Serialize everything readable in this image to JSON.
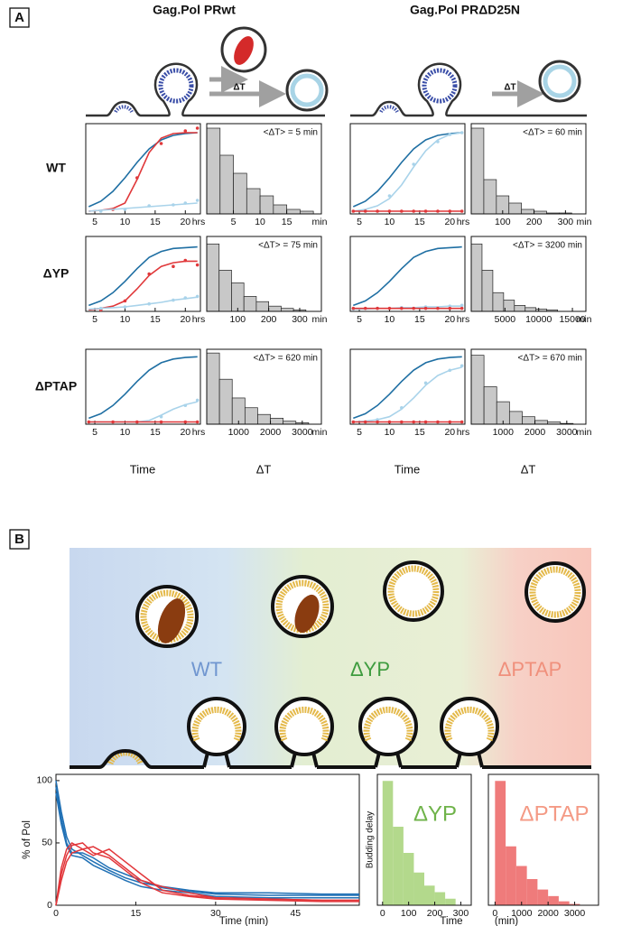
{
  "panel_a": {
    "label": "A",
    "columns": [
      "Gag.Pol PRwt",
      "Gag.Pol PRΔD25N"
    ],
    "rows": [
      "WT",
      "ΔYP",
      "ΔPTAP"
    ],
    "diagram_labels": [
      "ΔT",
      "ΔT"
    ],
    "x_titles": [
      "Time",
      "ΔT",
      "Time",
      "ΔT"
    ]
  },
  "panel_b": {
    "label": "B",
    "region_labels": [
      "WT",
      "ΔYP",
      "ΔPTAP"
    ]
  },
  "chart_data": [
    {
      "type": "line",
      "x": [
        4,
        6,
        8,
        10,
        12,
        14,
        16,
        18,
        20,
        22
      ],
      "xlim": [
        3.5,
        22.5
      ],
      "xticks": [
        5,
        10,
        15,
        20
      ],
      "x_unit": "hrs",
      "ylim": [
        0,
        100
      ],
      "series": [
        {
          "color": "#1f6fa3",
          "values": [
            8,
            14,
            25,
            40,
            57,
            72,
            82,
            87,
            89,
            90
          ]
        },
        {
          "color": "#e0383a",
          "values": [
            3,
            4,
            6,
            12,
            38,
            68,
            84,
            89,
            90,
            90
          ],
          "points": [
            null,
            null,
            5,
            null,
            40,
            null,
            78,
            null,
            92,
            95
          ]
        },
        {
          "color": "#a9d3ea",
          "values": [
            3,
            4,
            5,
            6,
            7,
            8,
            9,
            10,
            11,
            12
          ],
          "points": [
            null,
            3,
            null,
            5,
            null,
            9,
            null,
            10,
            12,
            15
          ]
        }
      ]
    },
    {
      "type": "histogram",
      "bins": [
        0,
        2.5,
        5,
        7.5,
        10,
        12.5,
        15,
        17.5,
        20
      ],
      "counts": [
        95,
        65,
        45,
        28,
        20,
        10,
        5,
        3
      ],
      "xlim": [
        0,
        21.5
      ],
      "xticks": [
        5,
        10,
        15
      ],
      "x_unit": "min",
      "ylim": [
        0,
        100
      ],
      "color": "#c8c8c8",
      "annotation": "<ΔT> = 5 min"
    },
    {
      "type": "line",
      "x": [
        4,
        6,
        8,
        10,
        12,
        14,
        16,
        18,
        20,
        22
      ],
      "xlim": [
        3.5,
        22.5
      ],
      "xticks": [
        5,
        10,
        15,
        20
      ],
      "x_unit": "hrs",
      "ylim": [
        0,
        100
      ],
      "series": [
        {
          "color": "#1f6fa3",
          "values": [
            8,
            14,
            25,
            40,
            57,
            72,
            82,
            87,
            89,
            90
          ]
        },
        {
          "color": "#a9d3ea",
          "values": [
            3,
            5,
            9,
            17,
            32,
            52,
            70,
            82,
            88,
            90
          ],
          "points": [
            null,
            4,
            null,
            20,
            null,
            55,
            null,
            80,
            88,
            90
          ]
        },
        {
          "color": "#e0383a",
          "values": [
            3,
            3,
            3,
            3,
            3,
            3,
            3,
            3,
            3,
            3
          ],
          "points": [
            3,
            3,
            3,
            3,
            3,
            3,
            3,
            3,
            3,
            3
          ]
        }
      ]
    },
    {
      "type": "histogram",
      "bins": [
        0,
        40,
        80,
        120,
        160,
        200,
        240,
        280,
        320
      ],
      "counts": [
        95,
        38,
        20,
        12,
        5,
        3,
        1,
        1
      ],
      "xlim": [
        0,
        365
      ],
      "xticks": [
        100,
        200,
        300
      ],
      "x_unit": "min",
      "ylim": [
        0,
        100
      ],
      "color": "#c8c8c8",
      "annotation": "<ΔT> = 60 min"
    },
    {
      "type": "line",
      "x": [
        4,
        6,
        8,
        10,
        12,
        14,
        16,
        18,
        20,
        22
      ],
      "xlim": [
        3.5,
        22.5
      ],
      "xticks": [
        5,
        10,
        15,
        20
      ],
      "x_unit": "hrs",
      "ylim": [
        0,
        100
      ],
      "series": [
        {
          "color": "#1f6fa3",
          "values": [
            8,
            14,
            25,
            40,
            57,
            72,
            80,
            84,
            85,
            86
          ]
        },
        {
          "color": "#e0383a",
          "values": [
            2,
            4,
            7,
            14,
            30,
            48,
            60,
            65,
            67,
            67
          ],
          "points": [
            null,
            2,
            null,
            14,
            null,
            50,
            null,
            60,
            68,
            62
          ]
        },
        {
          "color": "#a9d3ea",
          "values": [
            3,
            4,
            5,
            6,
            8,
            10,
            12,
            15,
            17,
            19
          ],
          "points": [
            null,
            4,
            null,
            6,
            null,
            10,
            null,
            15,
            18,
            20
          ]
        }
      ]
    },
    {
      "type": "histogram",
      "bins": [
        0,
        40,
        80,
        120,
        160,
        200,
        240,
        280,
        320
      ],
      "counts": [
        90,
        55,
        38,
        20,
        13,
        7,
        4,
        2
      ],
      "xlim": [
        0,
        370
      ],
      "xticks": [
        100,
        200,
        300
      ],
      "x_unit": "min",
      "ylim": [
        0,
        100
      ],
      "color": "#c8c8c8",
      "annotation": "<ΔT> = 75 min"
    },
    {
      "type": "line",
      "x": [
        4,
        6,
        8,
        10,
        12,
        14,
        16,
        18,
        20,
        22
      ],
      "xlim": [
        3.5,
        22.5
      ],
      "xticks": [
        5,
        10,
        15,
        20
      ],
      "x_unit": "hrs",
      "ylim": [
        0,
        100
      ],
      "series": [
        {
          "color": "#1f6fa3",
          "values": [
            8,
            14,
            25,
            40,
            57,
            72,
            80,
            84,
            85,
            86
          ]
        },
        {
          "color": "#a9d3ea",
          "values": [
            3,
            3,
            4,
            4,
            5,
            5,
            6,
            6,
            7,
            7
          ],
          "points": [
            3,
            null,
            4,
            null,
            5,
            null,
            6,
            null,
            7,
            8
          ]
        },
        {
          "color": "#e0383a",
          "values": [
            4,
            4,
            4,
            4,
            4,
            4,
            4,
            4,
            4,
            4
          ],
          "points": [
            4,
            4,
            4,
            4,
            4,
            4,
            4,
            4,
            4,
            4
          ]
        }
      ]
    },
    {
      "type": "histogram",
      "bins": [
        0,
        1600,
        3200,
        4800,
        6400,
        8000,
        9600,
        11200,
        12800
      ],
      "counts": [
        90,
        55,
        25,
        15,
        8,
        5,
        3,
        2
      ],
      "xlim": [
        0,
        17000
      ],
      "xticks": [
        5000,
        10000,
        15000
      ],
      "x_unit": "min",
      "ylim": [
        0,
        100
      ],
      "color": "#c8c8c8",
      "annotation": "<ΔT> = 3200 min"
    },
    {
      "type": "line",
      "x": [
        4,
        6,
        8,
        10,
        12,
        14,
        16,
        18,
        20,
        22
      ],
      "xlim": [
        3.5,
        22.5
      ],
      "xticks": [
        5,
        10,
        15,
        20
      ],
      "x_unit": "hrs",
      "ylim": [
        0,
        100
      ],
      "series": [
        {
          "color": "#1f6fa3",
          "values": [
            8,
            14,
            25,
            40,
            57,
            72,
            82,
            87,
            89,
            90
          ]
        },
        {
          "color": "#a9d3ea",
          "values": [
            3,
            3,
            3,
            3,
            3,
            5,
            12,
            20,
            26,
            30
          ],
          "points": [
            null,
            null,
            null,
            null,
            null,
            null,
            10,
            null,
            25,
            32
          ]
        },
        {
          "color": "#e0383a",
          "values": [
            3,
            3,
            3,
            3,
            3,
            3,
            3,
            3,
            3,
            3
          ],
          "points": [
            3,
            null,
            3,
            null,
            3,
            null,
            3,
            null,
            3,
            3
          ]
        }
      ]
    },
    {
      "type": "histogram",
      "bins": [
        0,
        400,
        800,
        1200,
        1600,
        2000,
        2400,
        2800,
        3200
      ],
      "counts": [
        95,
        60,
        35,
        22,
        13,
        8,
        4,
        2
      ],
      "xlim": [
        0,
        3600
      ],
      "xticks": [
        1000,
        2000,
        3000
      ],
      "x_unit": "min",
      "ylim": [
        0,
        100
      ],
      "color": "#c8c8c8",
      "annotation": "<ΔT> = 620 min"
    },
    {
      "type": "line",
      "x": [
        4,
        6,
        8,
        10,
        12,
        14,
        16,
        18,
        20,
        22
      ],
      "xlim": [
        3.5,
        22.5
      ],
      "xticks": [
        5,
        10,
        15,
        20
      ],
      "x_unit": "hrs",
      "ylim": [
        0,
        100
      ],
      "series": [
        {
          "color": "#1f6fa3",
          "values": [
            8,
            14,
            25,
            40,
            57,
            72,
            82,
            87,
            89,
            90
          ]
        },
        {
          "color": "#a9d3ea",
          "values": [
            3,
            4,
            6,
            10,
            20,
            35,
            52,
            65,
            72,
            76
          ],
          "points": [
            null,
            null,
            6,
            null,
            22,
            null,
            55,
            null,
            72,
            78
          ]
        },
        {
          "color": "#e0383a",
          "values": [
            3,
            3,
            3,
            3,
            3,
            3,
            3,
            3,
            3,
            3
          ],
          "points": [
            3,
            3,
            3,
            3,
            3,
            3,
            3,
            3,
            3,
            3
          ]
        }
      ]
    },
    {
      "type": "histogram",
      "bins": [
        0,
        400,
        800,
        1200,
        1600,
        2000,
        2400,
        2800,
        3200
      ],
      "counts": [
        92,
        50,
        30,
        17,
        10,
        5,
        3,
        1
      ],
      "xlim": [
        0,
        3600
      ],
      "xticks": [
        1000,
        2000,
        3000
      ],
      "x_unit": "min",
      "ylim": [
        0,
        100
      ],
      "color": "#c8c8c8",
      "annotation": "<ΔT> = 670 min"
    },
    {
      "type": "line",
      "x": [
        0,
        1,
        2,
        3,
        5,
        7,
        10,
        13,
        16,
        20,
        25,
        30,
        40,
        50,
        57
      ],
      "xlim": [
        0,
        57
      ],
      "xticks": [
        0,
        15,
        30,
        45
      ],
      "ylim": [
        0,
        105
      ],
      "yticks": [
        0,
        50,
        100
      ],
      "xlabel": "Time  (min)",
      "ylabel": "% of Pol",
      "series": [
        {
          "color": "#2171b5",
          "values": [
            100,
            75,
            55,
            45,
            40,
            35,
            28,
            22,
            18,
            15,
            12,
            10,
            10,
            9,
            9
          ]
        },
        {
          "color": "#2171b5",
          "values": [
            95,
            70,
            50,
            42,
            42,
            38,
            30,
            25,
            20,
            14,
            11,
            9,
            8,
            8,
            8
          ]
        },
        {
          "color": "#2171b5",
          "values": [
            90,
            65,
            48,
            40,
            38,
            32,
            26,
            20,
            15,
            12,
            10,
            7,
            6,
            6,
            6
          ]
        },
        {
          "color": "#e2373b",
          "values": [
            0,
            30,
            45,
            50,
            45,
            40,
            45,
            35,
            25,
            12,
            8,
            6,
            5,
            4,
            4
          ]
        },
        {
          "color": "#e2373b",
          "values": [
            0,
            25,
            40,
            48,
            50,
            42,
            38,
            28,
            18,
            10,
            7,
            5,
            4,
            3,
            3
          ]
        },
        {
          "color": "#e2373b",
          "values": [
            0,
            20,
            35,
            42,
            45,
            47,
            40,
            30,
            20,
            15,
            10,
            6,
            5,
            4,
            4
          ]
        }
      ]
    },
    {
      "type": "histogram",
      "bins": [
        0,
        40,
        80,
        120,
        160,
        200,
        240,
        280
      ],
      "counts": [
        95,
        60,
        40,
        25,
        15,
        10,
        5
      ],
      "xlim": [
        -20,
        340
      ],
      "xticks": [
        0,
        100,
        200,
        300
      ],
      "ylim": [
        0,
        100
      ],
      "color": "#b3d98c",
      "annotation": "ΔYP",
      "ylabel": "Budding delay",
      "xlabel": "Time"
    },
    {
      "type": "histogram",
      "bins": [
        0,
        400,
        800,
        1200,
        1600,
        2000,
        2400,
        2800,
        3200
      ],
      "counts": [
        95,
        45,
        30,
        20,
        12,
        7,
        3,
        1
      ],
      "xlim": [
        -250,
        3900
      ],
      "xticks": [
        0,
        1000,
        2000,
        3000
      ],
      "ylim": [
        0,
        100
      ],
      "color": "#ef7b7b",
      "annotation": "ΔPTAP",
      "xlabel": "(min)"
    }
  ]
}
